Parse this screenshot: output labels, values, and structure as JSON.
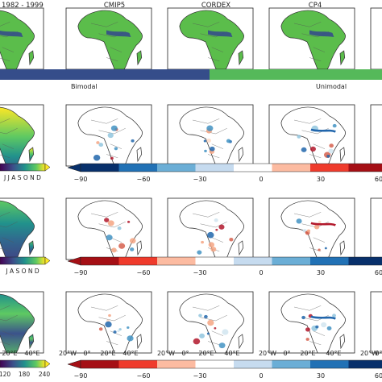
{
  "chart_data": {
    "type": "heatmap",
    "column_titles": [
      "1982 - 1999",
      "CMIP5",
      "CORDEX",
      "CP4",
      ""
    ],
    "regime_bar": {
      "segments": [
        {
          "label": "Bimodal",
          "color": "#354d8a"
        },
        {
          "label": "Unimodal",
          "color": "#55b95a"
        }
      ]
    },
    "rows": [
      {
        "name": "regime",
        "legend": null
      },
      {
        "name": "row-2",
        "legend": {
          "months": "J J A S O N D",
          "ticks": [
            "−90",
            "−60",
            "−30",
            "0",
            "30",
            "60"
          ]
        }
      },
      {
        "name": "row-3",
        "legend": {
          "months": "J A S O N D",
          "ticks": [
            "−90",
            "−60",
            "−30",
            "0",
            "30",
            "60"
          ]
        }
      },
      {
        "name": "row-4",
        "legend": {
          "values": [
            "120",
            "180",
            "240"
          ],
          "ticks": [
            "−90",
            "−60",
            "−30",
            "0",
            "30",
            "60"
          ]
        }
      }
    ],
    "x_axis_ticks": [
      "20°E",
      "40°E",
      "20°W",
      "0°",
      "20°E",
      "40°E",
      "20°W",
      "0°",
      "20°E",
      "40°E",
      "20°W",
      "0°",
      "20°E",
      "40°E",
      "20°W",
      "0°",
      "20°E",
      "40°E",
      "20°W"
    ],
    "colors": {
      "land_green": "#5bbd4b",
      "bimodal_blue": "#354d8a",
      "unimodal_green": "#55b95a",
      "viridis": [
        "#440154",
        "#3b528b",
        "#21918c",
        "#5ec962",
        "#fde725"
      ],
      "div_blue_red": [
        "#08306b",
        "#2171b5",
        "#6baed6",
        "#c6dbef",
        "#ffffff",
        "#fcbba1",
        "#ef3b2c",
        "#a50f15"
      ],
      "div_red_blue": [
        "#a50f15",
        "#ef3b2c",
        "#fcbba1",
        "#ffffff",
        "#c6dbef",
        "#6baed6",
        "#2171b5",
        "#08306b"
      ]
    }
  }
}
